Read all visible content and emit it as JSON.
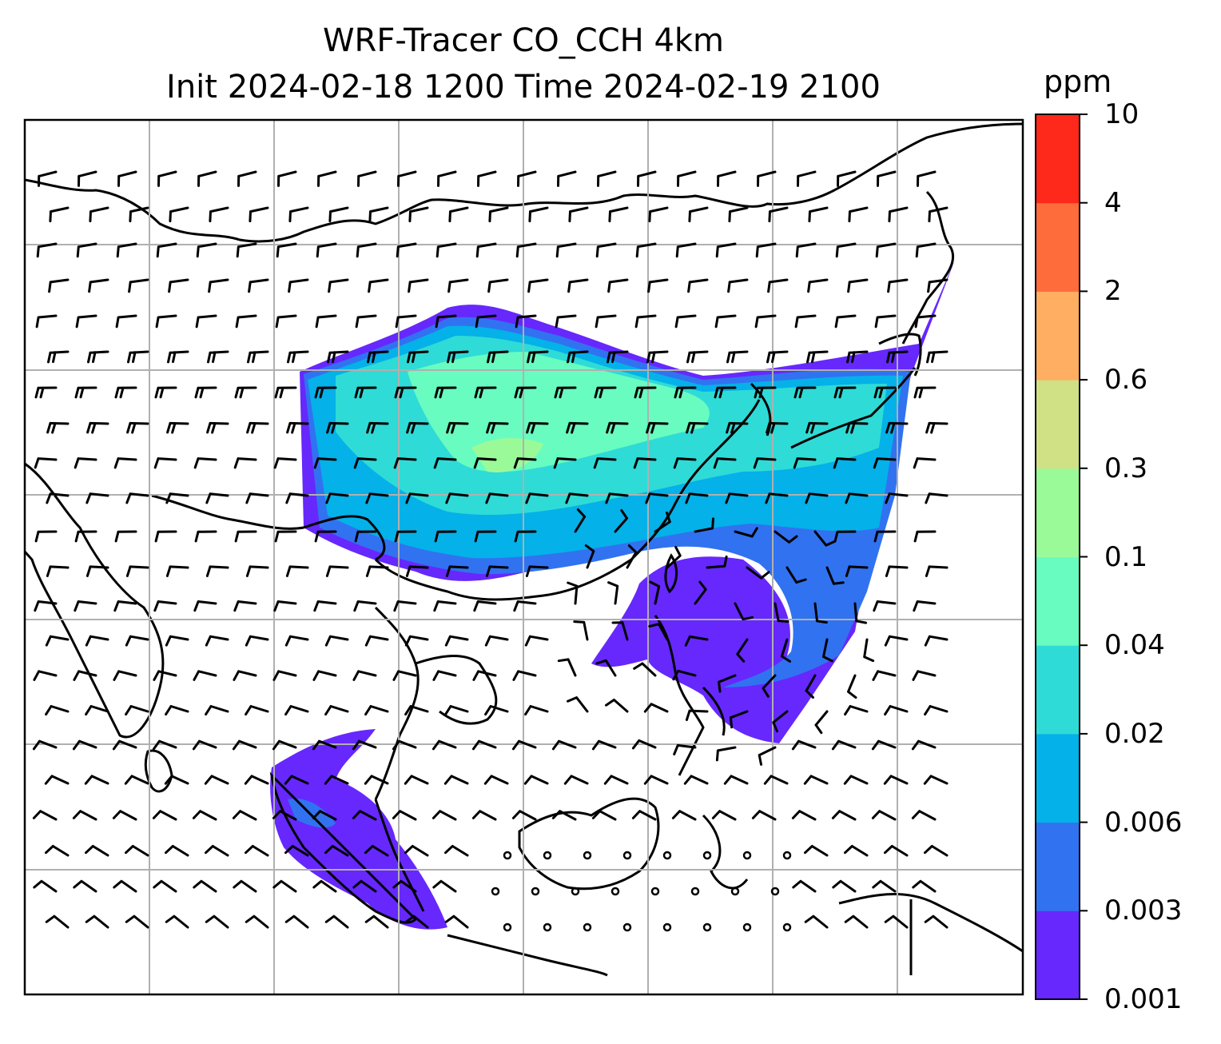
{
  "title": {
    "line1": "WRF-Tracer CO_CCH 4km",
    "line2": "Init 2024-02-18 1200 Time 2024-02-19 2100"
  },
  "colorbar": {
    "unit": "ppm",
    "levels": [
      "0.001",
      "0.003",
      "0.006",
      "0.02",
      "0.04",
      "0.1",
      "0.3",
      "0.6",
      "2",
      "4",
      "10"
    ],
    "colors": [
      "#6628fd",
      "#3172f1",
      "#04b1e8",
      "#2fdbd6",
      "#68fcc0",
      "#9bfa98",
      "#d0e085",
      "#ffae62",
      "#ff6c3c",
      "#ff291b"
    ]
  },
  "map": {
    "layers": [
      "coastlines",
      "country-borders",
      "lat-lon-gridlines",
      "wind-barbs",
      "tracer-concentration-fill"
    ],
    "gridline_color": "#b0b0b0",
    "coast_color": "#000000"
  }
}
